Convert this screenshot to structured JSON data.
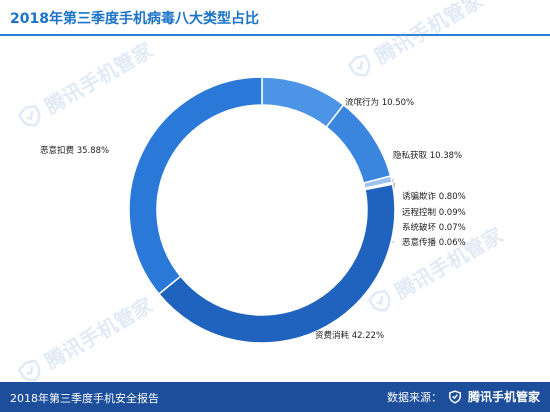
{
  "header": {
    "title": "2018年第三季度手机病毒八大类型占比"
  },
  "watermark": {
    "text": "腾讯手机管家"
  },
  "chart_data": {
    "type": "pie",
    "donut": true,
    "title": "2018年第三季度手机病毒八大类型占比",
    "slices": [
      {
        "label": "流氓行为",
        "value": 10.5,
        "text": "流氓行为  10.50%",
        "color": "#4b94e6"
      },
      {
        "label": "隐私获取",
        "value": 10.38,
        "text": "隐私获取  10.38%",
        "color": "#3a86df"
      },
      {
        "label": "诱骗欺诈",
        "value": 0.8,
        "text": "诱骗欺诈  0.80%",
        "color": "#9cc3f0"
      },
      {
        "label": "远程控制",
        "value": 0.09,
        "text": "远程控制  0.09%",
        "color": "#7fb2ec"
      },
      {
        "label": "系统破坏",
        "value": 0.07,
        "text": "系统破坏  0.07%",
        "color": "#5e9fe8"
      },
      {
        "label": "恶意传播",
        "value": 0.06,
        "text": "恶意传播  0.06%",
        "color": "#4a93e3"
      },
      {
        "label": "资费消耗",
        "value": 42.22,
        "text": "资费消耗  42.22%",
        "color": "#1f63be"
      },
      {
        "label": "恶意扣费",
        "value": 35.88,
        "text": "恶意扣费  35.88%",
        "color": "#2a78d8"
      }
    ]
  },
  "footer": {
    "report": "2018年第三季度手机安全报告",
    "source_label": "数据来源：",
    "brand": "腾讯手机管家"
  }
}
